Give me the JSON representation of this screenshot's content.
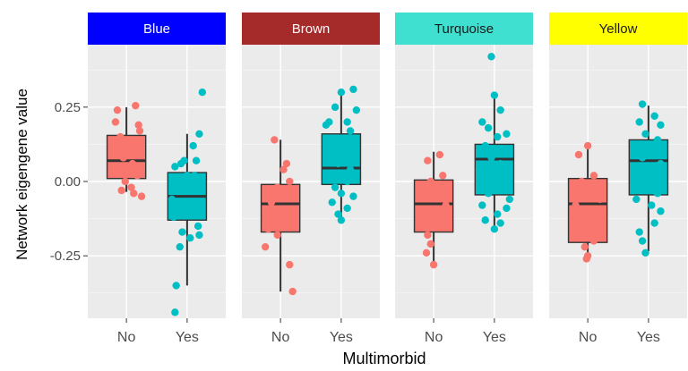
{
  "chart_data": {
    "type": "box",
    "xlabel": "Multimorbid",
    "ylabel": "Network eigengene value",
    "categories": [
      "No",
      "Yes"
    ],
    "y_ticks": [
      {
        "value": -0.25,
        "label": "-0.25"
      },
      {
        "value": 0.0,
        "label": "0.00"
      },
      {
        "value": 0.25,
        "label": "0.25"
      }
    ],
    "ylim": [
      -0.46,
      0.46
    ],
    "grid": true,
    "series_colors": {
      "No": "#F8766D",
      "Yes": "#00BFC4"
    },
    "panels": [
      {
        "name": "Blue",
        "strip_color": "#0000FF",
        "boxes": [
          {
            "group": "No",
            "q1": 0.01,
            "median": 0.07,
            "q3": 0.155,
            "whisker_low": -0.035,
            "whisker_high": 0.25,
            "points": [
              [
                -0.15,
                0.24
              ],
              [
                0.15,
                0.255
              ],
              [
                0.2,
                0.19
              ],
              [
                0.22,
                0.17
              ],
              [
                -0.18,
                0.2
              ],
              [
                -0.1,
                0.15
              ],
              [
                0.05,
                0.1
              ],
              [
                -0.05,
                0.08
              ],
              [
                0.1,
                0.06
              ],
              [
                -0.12,
                0.04
              ],
              [
                0.18,
                0.02
              ],
              [
                -0.02,
                0.0
              ],
              [
                0.08,
                -0.02
              ],
              [
                -0.08,
                -0.03
              ],
              [
                0.12,
                -0.04
              ],
              [
                0.25,
                -0.05
              ]
            ]
          },
          {
            "group": "Yes",
            "q1": -0.13,
            "median": -0.05,
            "q3": 0.03,
            "whisker_low": -0.35,
            "whisker_high": 0.16,
            "points": [
              [
                0.25,
                0.3
              ],
              [
                0.2,
                0.16
              ],
              [
                0.1,
                0.12
              ],
              [
                -0.05,
                0.07
              ],
              [
                0.15,
                0.07
              ],
              [
                -0.1,
                0.06
              ],
              [
                -0.2,
                0.05
              ],
              [
                0.12,
                0.02
              ],
              [
                0.0,
                0.02
              ],
              [
                -0.15,
                -0.02
              ],
              [
                0.22,
                -0.03
              ],
              [
                -0.25,
                -0.06
              ],
              [
                0.05,
                -0.09
              ],
              [
                -0.22,
                -0.12
              ],
              [
                0.18,
                -0.15
              ],
              [
                -0.08,
                -0.17
              ],
              [
                0.2,
                -0.18
              ],
              [
                0.05,
                -0.19
              ],
              [
                -0.12,
                -0.22
              ],
              [
                -0.18,
                -0.35
              ],
              [
                -0.2,
                -0.44
              ]
            ]
          }
        ]
      },
      {
        "name": "Brown",
        "strip_color": "#A52A2A",
        "boxes": [
          {
            "group": "No",
            "q1": -0.17,
            "median": -0.075,
            "q3": -0.01,
            "whisker_low": -0.37,
            "whisker_high": 0.14,
            "points": [
              [
                -0.1,
                0.14
              ],
              [
                0.1,
                0.06
              ],
              [
                0.05,
                0.04
              ],
              [
                0.15,
                0.0
              ],
              [
                -0.05,
                -0.02
              ],
              [
                0.2,
                -0.05
              ],
              [
                -0.15,
                -0.07
              ],
              [
                0.0,
                -0.1
              ],
              [
                0.12,
                -0.13
              ],
              [
                -0.2,
                -0.16
              ],
              [
                -0.05,
                -0.18
              ],
              [
                -0.25,
                -0.22
              ],
              [
                0.15,
                -0.28
              ],
              [
                0.2,
                -0.37
              ]
            ]
          },
          {
            "group": "Yes",
            "q1": -0.01,
            "median": 0.045,
            "q3": 0.16,
            "whisker_low": -0.13,
            "whisker_high": 0.31,
            "points": [
              [
                0.2,
                0.31
              ],
              [
                0.0,
                0.3
              ],
              [
                -0.1,
                0.25
              ],
              [
                0.25,
                0.24
              ],
              [
                -0.2,
                0.2
              ],
              [
                0.1,
                0.2
              ],
              [
                -0.25,
                0.19
              ],
              [
                0.15,
                0.17
              ],
              [
                -0.15,
                0.14
              ],
              [
                0.05,
                0.12
              ],
              [
                0.2,
                0.08
              ],
              [
                -0.05,
                0.06
              ],
              [
                0.15,
                0.04
              ],
              [
                -0.2,
                0.02
              ],
              [
                0.1,
                0.0
              ],
              [
                -0.1,
                -0.02
              ],
              [
                0.0,
                -0.04
              ],
              [
                0.2,
                -0.05
              ],
              [
                -0.15,
                -0.07
              ],
              [
                0.1,
                -0.09
              ],
              [
                -0.05,
                -0.11
              ],
              [
                0.0,
                -0.13
              ]
            ]
          }
        ]
      },
      {
        "name": "Turquoise",
        "strip_color": "#40E0D0",
        "boxes": [
          {
            "group": "No",
            "q1": -0.17,
            "median": -0.075,
            "q3": 0.005,
            "whisker_low": -0.28,
            "whisker_high": 0.1,
            "points": [
              [
                0.1,
                0.09
              ],
              [
                -0.1,
                0.07
              ],
              [
                0.15,
                0.02
              ],
              [
                -0.05,
                0.0
              ],
              [
                0.05,
                -0.02
              ],
              [
                -0.15,
                -0.05
              ],
              [
                0.2,
                -0.08
              ],
              [
                0.0,
                -0.1
              ],
              [
                -0.2,
                -0.13
              ],
              [
                0.1,
                -0.15
              ],
              [
                -0.1,
                -0.18
              ],
              [
                -0.05,
                -0.21
              ],
              [
                -0.12,
                -0.24
              ],
              [
                0.0,
                -0.28
              ]
            ]
          },
          {
            "group": "Yes",
            "q1": -0.045,
            "median": 0.075,
            "q3": 0.125,
            "whisker_low": -0.165,
            "whisker_high": 0.295,
            "points": [
              [
                -0.05,
                0.42
              ],
              [
                0.0,
                0.29
              ],
              [
                0.1,
                0.24
              ],
              [
                -0.2,
                0.2
              ],
              [
                -0.1,
                0.18
              ],
              [
                0.2,
                0.16
              ],
              [
                0.05,
                0.15
              ],
              [
                -0.15,
                0.12
              ],
              [
                0.15,
                0.1
              ],
              [
                -0.05,
                0.08
              ],
              [
                0.1,
                0.06
              ],
              [
                -0.25,
                0.04
              ],
              [
                0.2,
                0.02
              ],
              [
                0.0,
                0.0
              ],
              [
                -0.1,
                -0.04
              ],
              [
                0.25,
                -0.06
              ],
              [
                -0.2,
                -0.08
              ],
              [
                0.2,
                -0.09
              ],
              [
                0.05,
                -0.11
              ],
              [
                -0.15,
                -0.13
              ],
              [
                0.1,
                -0.14
              ],
              [
                0.0,
                -0.16
              ]
            ]
          }
        ]
      },
      {
        "name": "Yellow",
        "strip_color": "#FFFF00",
        "boxes": [
          {
            "group": "No",
            "q1": -0.205,
            "median": -0.075,
            "q3": 0.01,
            "whisker_low": -0.26,
            "whisker_high": 0.115,
            "points": [
              [
                0.0,
                0.12
              ],
              [
                -0.15,
                0.09
              ],
              [
                0.1,
                0.02
              ],
              [
                -0.1,
                0.0
              ],
              [
                0.05,
                -0.03
              ],
              [
                0.2,
                -0.06
              ],
              [
                -0.2,
                -0.08
              ],
              [
                0.0,
                -0.11
              ],
              [
                0.15,
                -0.14
              ],
              [
                -0.1,
                -0.17
              ],
              [
                0.1,
                -0.2
              ],
              [
                -0.05,
                -0.22
              ],
              [
                0.0,
                -0.25
              ],
              [
                -0.02,
                -0.26
              ]
            ]
          },
          {
            "group": "Yes",
            "q1": -0.045,
            "median": 0.07,
            "q3": 0.14,
            "whisker_low": -0.235,
            "whisker_high": 0.255,
            "points": [
              [
                -0.1,
                0.26
              ],
              [
                0.1,
                0.22
              ],
              [
                -0.15,
                0.2
              ],
              [
                0.2,
                0.19
              ],
              [
                -0.05,
                0.16
              ],
              [
                0.15,
                0.14
              ],
              [
                -0.2,
                0.12
              ],
              [
                0.05,
                0.1
              ],
              [
                -0.1,
                0.08
              ],
              [
                0.2,
                0.06
              ],
              [
                0.0,
                0.04
              ],
              [
                -0.15,
                0.02
              ],
              [
                0.1,
                0.0
              ],
              [
                -0.05,
                -0.02
              ],
              [
                0.15,
                -0.04
              ],
              [
                -0.2,
                -0.06
              ],
              [
                0.05,
                -0.08
              ],
              [
                0.2,
                -0.1
              ],
              [
                0.1,
                -0.14
              ],
              [
                -0.15,
                -0.17
              ],
              [
                -0.1,
                -0.2
              ],
              [
                -0.05,
                -0.24
              ]
            ]
          }
        ]
      }
    ]
  }
}
